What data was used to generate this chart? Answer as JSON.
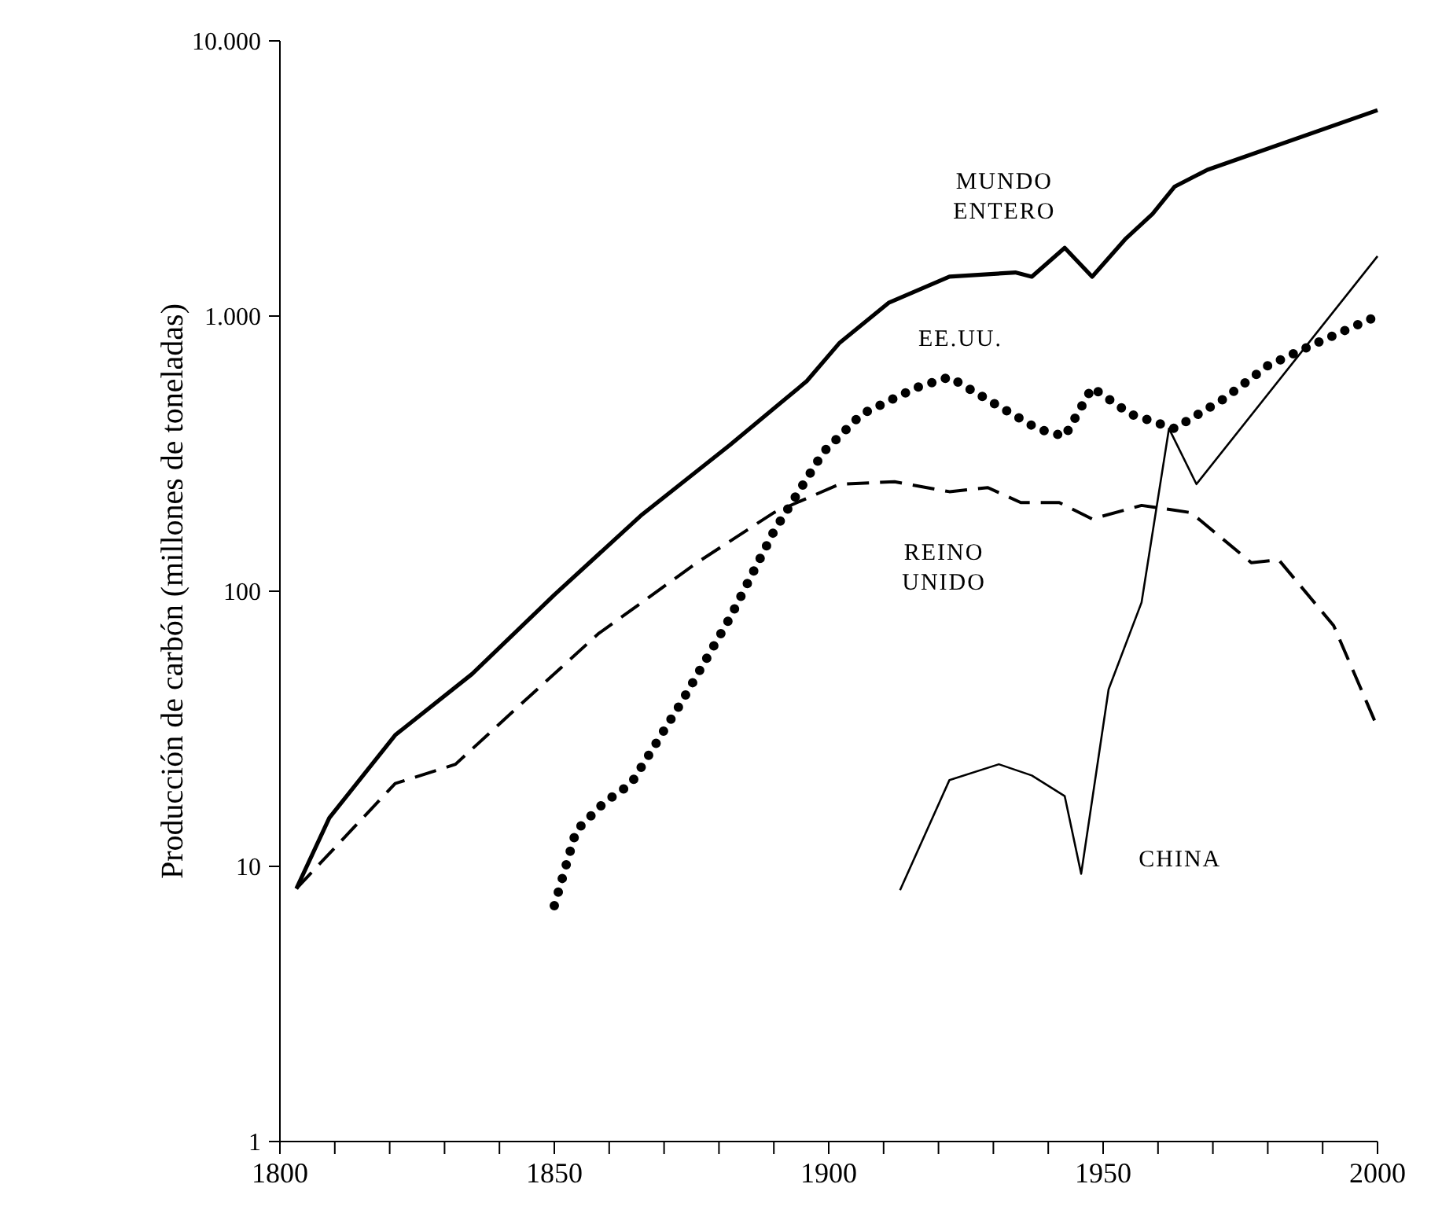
{
  "chart_data": {
    "type": "line",
    "ylabel": "Producción de carbón (millones de toneladas)",
    "log": "y",
    "xlim": [
      1800,
      2000
    ],
    "ylim": [
      1,
      10000
    ],
    "xticks": [
      1800,
      {
        "value": 1810,
        "label": null
      },
      {
        "value": 1820,
        "label": null
      },
      {
        "value": 1830,
        "label": null
      },
      {
        "value": 1840,
        "label": null
      },
      1850,
      {
        "value": 1860,
        "label": null
      },
      {
        "value": 1870,
        "label": null
      },
      {
        "value": 1880,
        "label": null
      },
      {
        "value": 1890,
        "label": null
      },
      1900,
      {
        "value": 1910,
        "label": null
      },
      {
        "value": 1920,
        "label": null
      },
      {
        "value": 1930,
        "label": null
      },
      {
        "value": 1940,
        "label": null
      },
      1950,
      {
        "value": 1960,
        "label": null
      },
      {
        "value": 1970,
        "label": null
      },
      {
        "value": 1980,
        "label": null
      },
      {
        "value": 1990,
        "label": null
      },
      2000
    ],
    "yticks": [
      1,
      10,
      100,
      {
        "value": 1000,
        "label": "1.000"
      },
      {
        "value": 10000,
        "label": "10.000"
      }
    ],
    "grid": false,
    "series": [
      {
        "name": "MUNDO ENTERO",
        "color": "#000000",
        "line_style": "solid",
        "x": [
          1803,
          1809,
          1821,
          1835,
          1850,
          1866,
          1882,
          1896,
          1902,
          1911,
          1922,
          1934,
          1937,
          1943,
          1948,
          1954,
          1959,
          1963,
          1969,
          2000
        ],
        "values": [
          8.3,
          15,
          30,
          50,
          97,
          190,
          340,
          580,
          800,
          1120,
          1390,
          1440,
          1390,
          1770,
          1390,
          1900,
          2350,
          2950,
          3400,
          5600
        ]
      },
      {
        "name": "EE.UU.",
        "color": "#000000",
        "line_style": "dotted",
        "x": [
          1850,
          1854,
          1859,
          1864,
          1873,
          1882,
          1890,
          1899,
          1906,
          1916,
          1922,
          1931,
          1938,
          1943,
          1948,
          1955,
          1963,
          1972,
          1980,
          1989,
          2000
        ],
        "values": [
          7.2,
          13.5,
          17,
          20,
          39,
          80,
          165,
          320,
          440,
          550,
          600,
          470,
          390,
          365,
          550,
          440,
          390,
          500,
          660,
          800,
          1000
        ]
      },
      {
        "name": "REINO UNIDO",
        "color": "#000000",
        "line_style": "dashed",
        "x": [
          1803,
          1821,
          1832,
          1844,
          1858,
          1876,
          1890,
          1902,
          1912,
          1922,
          1929,
          1935,
          1942,
          1948,
          1957,
          1966,
          1977,
          1982,
          1992,
          2000
        ],
        "values": [
          8.3,
          20,
          23.5,
          39,
          70,
          127,
          193,
          245,
          250,
          230,
          238,
          210,
          210,
          183,
          205,
          193,
          127,
          130,
          75,
          32
        ]
      },
      {
        "name": "CHINA",
        "color": "#000000",
        "line_style": "solid",
        "x": [
          1913,
          1922,
          1931,
          1937,
          1943,
          1946,
          1951,
          1957,
          1962,
          1967,
          2000
        ],
        "values": [
          8.2,
          20.6,
          23.5,
          21.4,
          18,
          9.4,
          44,
          91,
          390,
          245,
          1650
        ]
      }
    ]
  }
}
